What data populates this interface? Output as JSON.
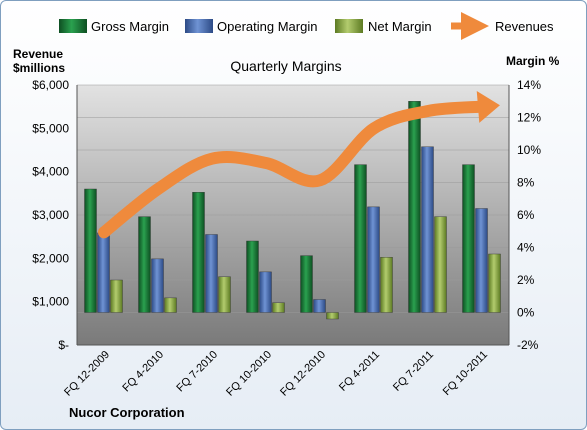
{
  "chart_data": {
    "type": "bar",
    "title": "Quarterly Margins",
    "categories": [
      "FQ 12-2009",
      "FQ 4-2010",
      "FQ 7-2010",
      "FQ 10-2010",
      "FQ 12-2010",
      "FQ 4-2011",
      "FQ 7-2011",
      "FQ 10-2011"
    ],
    "series": [
      {
        "name": "Gross Margin",
        "values": [
          7.6,
          5.9,
          7.4,
          4.4,
          3.5,
          9.1,
          13.0,
          9.1
        ],
        "color": "#1a7a3a"
      },
      {
        "name": "Operating Margin",
        "values": [
          4.9,
          3.3,
          4.8,
          2.5,
          0.8,
          6.5,
          10.2,
          6.4
        ],
        "color": "#4a6fb5"
      },
      {
        "name": "Net Margin",
        "values": [
          2.0,
          0.9,
          2.2,
          0.6,
          -0.4,
          3.4,
          5.9,
          3.6
        ],
        "color": "#8ca84a"
      }
    ],
    "line_series": {
      "name": "Revenues",
      "values": [
        2.6,
        3.6,
        4.3,
        4.2,
        3.8,
        5.0,
        5.4,
        5.5
      ],
      "color": "#ef8a3c"
    },
    "ylabel_left": "Revenue\n$millions",
    "ylabel_right": "Margin %",
    "left_axis": {
      "ylim": [
        0,
        6000
      ],
      "ticks": [
        "$-",
        "$1,000",
        "$2,000",
        "$3,000",
        "$4,000",
        "$5,000",
        "$6,000"
      ]
    },
    "right_axis": {
      "ylim": [
        -2,
        14
      ],
      "ticks": [
        "-2%",
        "0%",
        "2%",
        "4%",
        "6%",
        "8%",
        "10%",
        "12%",
        "14%"
      ]
    },
    "legend_position": "top",
    "grid": true
  },
  "footer": {
    "company": "Nucor Corporation"
  }
}
